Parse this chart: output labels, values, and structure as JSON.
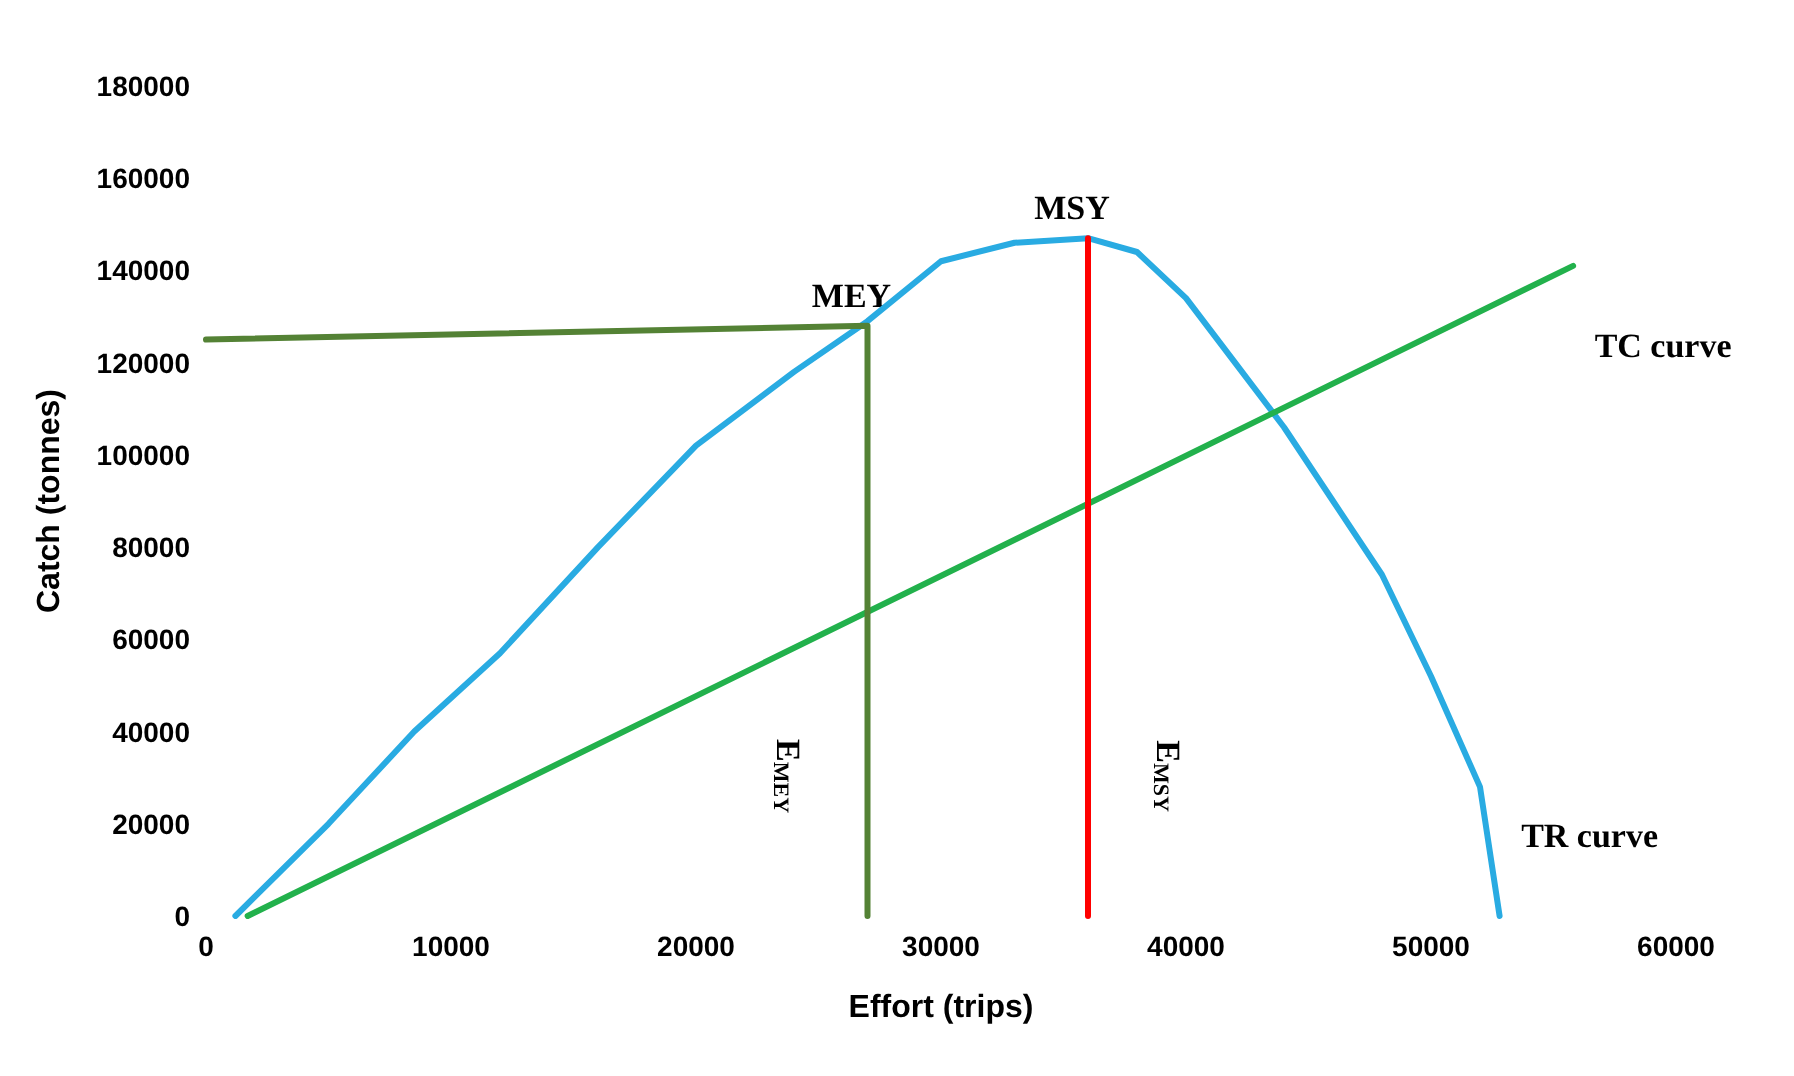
{
  "chart_data": {
    "type": "line",
    "xlabel": "Effort (trips)",
    "ylabel": "Catch (tonnes)",
    "xlim": [
      0,
      60000
    ],
    "xticks": [
      0,
      10000,
      20000,
      30000,
      40000,
      50000,
      60000
    ],
    "ylim": [
      0,
      180000
    ],
    "yticks": [
      0,
      20000,
      40000,
      60000,
      80000,
      100000,
      120000,
      140000,
      160000,
      180000
    ],
    "grid": false,
    "legend": false,
    "marker": "none",
    "line_style": "solid",
    "series": [
      {
        "name": "TR curve",
        "color": "#29abe2",
        "x": [
          1200,
          5000,
          8500,
          12000,
          16000,
          20000,
          24000,
          27000,
          30000,
          33000,
          36000,
          38000,
          40000,
          42000,
          44000,
          46000,
          48000,
          50000,
          52000,
          52800
        ],
        "values": [
          0,
          20000,
          40000,
          57000,
          80000,
          102000,
          118000,
          129000,
          142000,
          146000,
          147000,
          144000,
          134000,
          120000,
          106000,
          90000,
          74000,
          52000,
          28000,
          0
        ]
      },
      {
        "name": "TC curve",
        "color": "#22b14c",
        "x": [
          1700,
          55800
        ],
        "values": [
          0,
          141000
        ]
      },
      {
        "name": "MEY",
        "color": "#548235",
        "x": [
          0,
          27000,
          27000
        ],
        "values": [
          125000,
          128000,
          0
        ]
      },
      {
        "name": "MSY",
        "color": "#ff0000",
        "x": [
          36000,
          36000
        ],
        "values": [
          0,
          147000
        ]
      }
    ],
    "annotations": [
      "E$_{MEY}$",
      "E$_{MSY}$"
    ]
  }
}
